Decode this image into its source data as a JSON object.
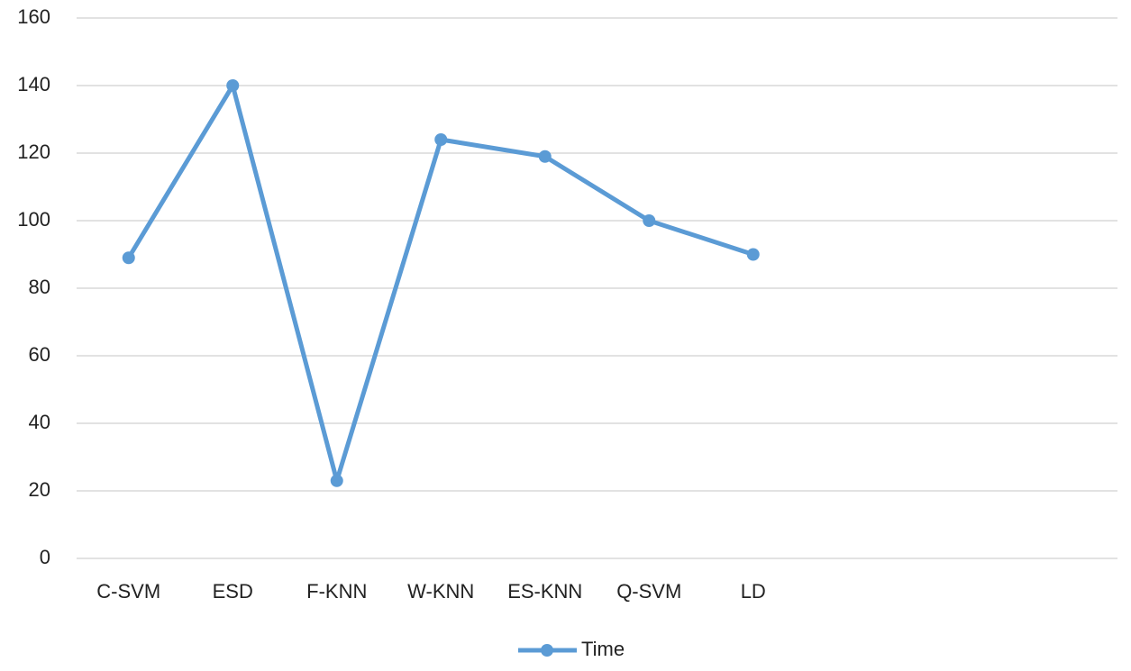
{
  "chart_data": {
    "type": "line",
    "categories": [
      "C-SVM",
      "ESD",
      "F-KNN",
      "W-KNN",
      "ES-KNN",
      "Q-SVM",
      "LD",
      null,
      null,
      null
    ],
    "series": [
      {
        "name": "Time",
        "color": "#5b9bd5",
        "values": [
          89,
          140,
          23,
          124,
          119,
          100,
          90,
          null,
          null,
          null
        ]
      }
    ],
    "ylim": [
      0,
      160
    ],
    "yticks": [
      0,
      20,
      40,
      60,
      80,
      100,
      120,
      140,
      160
    ],
    "grid": true,
    "legend": "bottom"
  }
}
